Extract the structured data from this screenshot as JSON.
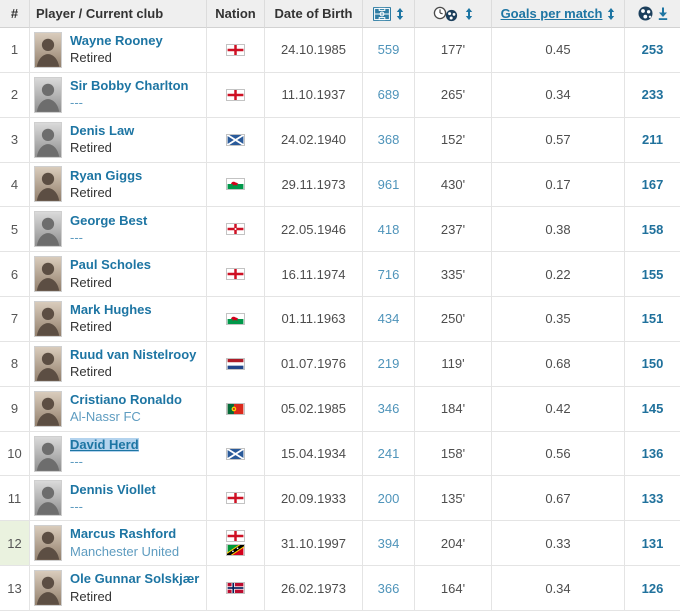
{
  "table": {
    "header": {
      "rank": "#",
      "player": "Player / Current club",
      "nation": "Nation",
      "dob": "Date of Birth",
      "appearances_icon": "football-pitch-icon",
      "minutes_per_goal_icon": "clock-and-ball-icon",
      "goals_per_match": "Goals per match",
      "goals_icon": "football-icon",
      "sort_icon": "sort-updown-icon",
      "sort_desc_icon": "sort-descending-icon"
    },
    "rows": [
      {
        "rank": "1",
        "name": "Wayne Rooney",
        "club": "Retired",
        "club_style": "plain",
        "nations": [
          "England"
        ],
        "dob": "24.10.1985",
        "apps": "559",
        "min_per_goal": "177'",
        "gpm": "0.45",
        "goals": "253",
        "photo": "clr",
        "name_selected": false,
        "rank_cell_highlight": false
      },
      {
        "rank": "2",
        "name": "Sir Bobby Charlton",
        "club": "---",
        "club_style": "link",
        "nations": [
          "England"
        ],
        "dob": "11.10.1937",
        "apps": "689",
        "min_per_goal": "265'",
        "gpm": "0.34",
        "goals": "233",
        "photo": "bw",
        "name_selected": false,
        "rank_cell_highlight": false
      },
      {
        "rank": "3",
        "name": "Denis Law",
        "club": "Retired",
        "club_style": "plain",
        "nations": [
          "Scotland"
        ],
        "dob": "24.02.1940",
        "apps": "368",
        "min_per_goal": "152'",
        "gpm": "0.57",
        "goals": "211",
        "photo": "bw",
        "name_selected": false,
        "rank_cell_highlight": false
      },
      {
        "rank": "4",
        "name": "Ryan Giggs",
        "club": "Retired",
        "club_style": "plain",
        "nations": [
          "Wales"
        ],
        "dob": "29.11.1973",
        "apps": "961",
        "min_per_goal": "430'",
        "gpm": "0.17",
        "goals": "167",
        "photo": "clr",
        "name_selected": false,
        "rank_cell_highlight": false
      },
      {
        "rank": "5",
        "name": "George Best",
        "club": "---",
        "club_style": "link",
        "nations": [
          "Northern Ireland"
        ],
        "dob": "22.05.1946",
        "apps": "418",
        "min_per_goal": "237'",
        "gpm": "0.38",
        "goals": "158",
        "photo": "bw",
        "name_selected": false,
        "rank_cell_highlight": false
      },
      {
        "rank": "6",
        "name": "Paul Scholes",
        "club": "Retired",
        "club_style": "plain",
        "nations": [
          "England"
        ],
        "dob": "16.11.1974",
        "apps": "716",
        "min_per_goal": "335'",
        "gpm": "0.22",
        "goals": "155",
        "photo": "clr",
        "name_selected": false,
        "rank_cell_highlight": false
      },
      {
        "rank": "7",
        "name": "Mark Hughes",
        "club": "Retired",
        "club_style": "plain",
        "nations": [
          "Wales"
        ],
        "dob": "01.11.1963",
        "apps": "434",
        "min_per_goal": "250'",
        "gpm": "0.35",
        "goals": "151",
        "photo": "clr",
        "name_selected": false,
        "rank_cell_highlight": false
      },
      {
        "rank": "8",
        "name": "Ruud van Nistelrooy",
        "club": "Retired",
        "club_style": "plain",
        "nations": [
          "Netherlands"
        ],
        "dob": "01.07.1976",
        "apps": "219",
        "min_per_goal": "119'",
        "gpm": "0.68",
        "goals": "150",
        "photo": "clr",
        "name_selected": false,
        "rank_cell_highlight": false
      },
      {
        "rank": "9",
        "name": "Cristiano Ronaldo",
        "club": "Al-Nassr FC",
        "club_style": "link",
        "nations": [
          "Portugal"
        ],
        "dob": "05.02.1985",
        "apps": "346",
        "min_per_goal": "184'",
        "gpm": "0.42",
        "goals": "145",
        "photo": "clr",
        "name_selected": false,
        "rank_cell_highlight": false
      },
      {
        "rank": "10",
        "name": "David Herd",
        "club": "---",
        "club_style": "link",
        "nations": [
          "Scotland"
        ],
        "dob": "15.04.1934",
        "apps": "241",
        "min_per_goal": "158'",
        "gpm": "0.56",
        "goals": "136",
        "photo": "bw",
        "name_selected": true,
        "rank_cell_highlight": false
      },
      {
        "rank": "11",
        "name": "Dennis Viollet",
        "club": "---",
        "club_style": "link",
        "nations": [
          "England"
        ],
        "dob": "20.09.1933",
        "apps": "200",
        "min_per_goal": "135'",
        "gpm": "0.67",
        "goals": "133",
        "photo": "bw",
        "name_selected": false,
        "rank_cell_highlight": false
      },
      {
        "rank": "12",
        "name": "Marcus Rashford",
        "club": "Manchester United",
        "club_style": "link",
        "nations": [
          "England",
          "St. Kitts & Nevis"
        ],
        "dob": "31.10.1997",
        "apps": "394",
        "min_per_goal": "204'",
        "gpm": "0.33",
        "goals": "131",
        "photo": "clr",
        "name_selected": false,
        "rank_cell_highlight": true
      },
      {
        "rank": "13",
        "name": "Ole Gunnar Solskjær",
        "club": "Retired",
        "club_style": "plain",
        "nations": [
          "Norway"
        ],
        "dob": "26.02.1973",
        "apps": "366",
        "min_per_goal": "164'",
        "gpm": "0.34",
        "goals": "126",
        "photo": "clr",
        "name_selected": false,
        "rank_cell_highlight": false
      }
    ]
  },
  "colors": {
    "accent_link": "#1d75a3",
    "light_link": "#4f94ba",
    "goals_bold": "#20719c",
    "header_bg": "#efefef",
    "row_border": "#e4e4e4",
    "rank_highlight_green": "#eaf2df",
    "text_selection": "#b3d3ee"
  }
}
